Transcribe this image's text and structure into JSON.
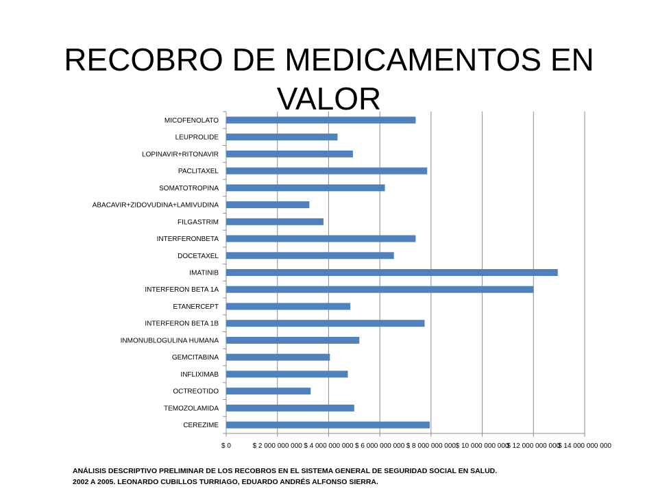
{
  "title": {
    "line1": "RECOBRO DE MEDICAMENTOS EN",
    "line2": "VALOR"
  },
  "chart_data": {
    "type": "bar",
    "orientation": "horizontal",
    "title": "RECOBRO DE MEDICAMENTOS EN VALOR",
    "categories": [
      "MICOFENOLATO",
      "LEUPROLIDE",
      "LOPINAVIR+RITONAVIR",
      "PACLITAXEL",
      "SOMATOTROPINA",
      "ABACAVIR+ZIDOVUDINA+LAMIVUDINA",
      "FILGASTRIM",
      "INTERFERONBETA",
      "DOCETAXEL",
      "IMATINIB",
      "INTERFERON BETA 1A",
      "ETANERCEPT",
      "INTERFERON BETA 1B",
      "INMONUBLOGULINA HUMANA",
      "GEMCITABINA",
      "INFLIXIMAB",
      "OCTREOTIDO",
      "TEMOZOLAMIDA",
      "CEREZIME"
    ],
    "values": [
      7400000000,
      4350000000,
      4950000000,
      7850000000,
      6200000000,
      3250000000,
      3800000000,
      7400000000,
      6550000000,
      12950000000,
      12000000000,
      4850000000,
      7750000000,
      5200000000,
      4050000000,
      4750000000,
      3300000000,
      5000000000,
      7950000000
    ],
    "x_ticks": [
      "$ 0",
      "$ 2 000 000 000",
      "$ 4 000 000 000",
      "$ 6 000 000 000",
      "$ 8 000 000 000",
      "$ 10 000 000 000",
      "$ 12 000 000 000",
      "$ 14 000 000 000"
    ],
    "xlim": [
      0,
      14000000000
    ],
    "grid": true,
    "bar_color": "#4f81bd"
  },
  "footer": {
    "line1": "ANÁLISIS DESCRIPTIVO PRELIMINAR DE LOS RECOBROS EN EL SISTEMA GENERAL DE SEGURIDAD SOCIAL EN SALUD.",
    "line2": "2002 A 2005. LEONARDO CUBILLOS TURRIAGO, EDUARDO ANDRÉS ALFONSO SIERRA."
  }
}
